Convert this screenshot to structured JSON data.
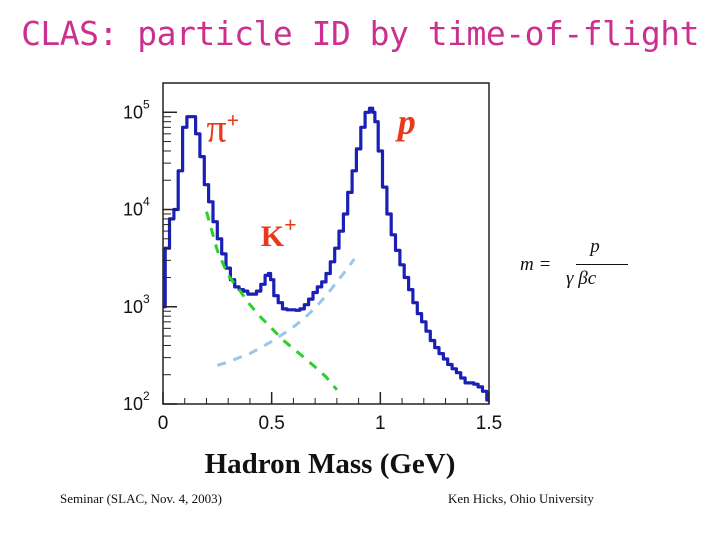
{
  "slide": {
    "title": "CLAS: particle ID by time-of-flight",
    "footer_left": "Seminar (SLAC, Nov. 4, 2003)",
    "footer_right": "Ken Hicks, Ohio University"
  },
  "formula": {
    "lhs": "m =",
    "numerator": "p",
    "denominator": "γ βc"
  },
  "chart_data": {
    "type": "line",
    "title": "",
    "xlabel": "Hadron Mass (GeV)",
    "ylabel": "",
    "xlim": [
      0,
      1.5
    ],
    "ylim": [
      100,
      200000
    ],
    "yscale": "log",
    "xticks": [
      "0",
      "0.5",
      "1",
      "1.5"
    ],
    "xtick_values": [
      0,
      0.5,
      1,
      1.5
    ],
    "yticks": [
      {
        "base": "10",
        "exp": "5",
        "value": 100000
      },
      {
        "base": "10",
        "exp": "4",
        "value": 10000
      },
      {
        "base": "10",
        "exp": "3",
        "value": 1000
      },
      {
        "base": "10",
        "exp": "2",
        "value": 100
      }
    ],
    "colors": {
      "data": "#1a1fb5",
      "pion_fit": "#2bd12b",
      "proton_fit": "#99c6ea",
      "labels": "#e8391a",
      "title": "#cc2f8f"
    },
    "series": [
      {
        "name": "data",
        "style": "solid",
        "x": [
          0.0,
          0.02,
          0.04,
          0.06,
          0.08,
          0.1,
          0.12,
          0.14,
          0.16,
          0.18,
          0.2,
          0.22,
          0.24,
          0.26,
          0.28,
          0.3,
          0.32,
          0.34,
          0.36,
          0.38,
          0.4,
          0.42,
          0.44,
          0.46,
          0.48,
          0.49,
          0.5,
          0.52,
          0.54,
          0.56,
          0.58,
          0.6,
          0.62,
          0.64,
          0.66,
          0.68,
          0.7,
          0.72,
          0.74,
          0.76,
          0.78,
          0.8,
          0.82,
          0.84,
          0.86,
          0.88,
          0.9,
          0.92,
          0.94,
          0.96,
          0.97,
          0.98,
          1.0,
          1.02,
          1.04,
          1.06,
          1.08,
          1.1,
          1.12,
          1.14,
          1.16,
          1.18,
          1.2,
          1.22,
          1.24,
          1.26,
          1.28,
          1.3,
          1.32,
          1.34,
          1.36,
          1.38,
          1.4,
          1.42,
          1.44,
          1.46,
          1.48,
          1.5
        ],
        "y": [
          1000,
          4000,
          8000,
          10000,
          25000,
          70000,
          90000,
          90000,
          60000,
          35000,
          18000,
          12000,
          7500,
          5000,
          3500,
          2500,
          1900,
          1600,
          1500,
          1450,
          1350,
          1350,
          1450,
          1700,
          2100,
          2200,
          1900,
          1300,
          1100,
          950,
          930,
          930,
          920,
          950,
          1050,
          1200,
          1400,
          1600,
          1800,
          2200,
          2900,
          4000,
          6000,
          9000,
          15000,
          25000,
          42000,
          70000,
          100000,
          110000,
          100000,
          80000,
          40000,
          17000,
          9000,
          5500,
          3800,
          2700,
          2000,
          1500,
          1100,
          850,
          700,
          560,
          450,
          380,
          330,
          290,
          255,
          230,
          210,
          185,
          165,
          165,
          160,
          150,
          135,
          110
        ]
      },
      {
        "name": "pion tail fit",
        "style": "dashed",
        "x": [
          0.2,
          0.25,
          0.3,
          0.35,
          0.4,
          0.45,
          0.5,
          0.55,
          0.6,
          0.65,
          0.7,
          0.75,
          0.8
        ],
        "y": [
          9500,
          3800,
          2100,
          1500,
          1050,
          780,
          600,
          460,
          370,
          300,
          240,
          190,
          140
        ]
      },
      {
        "name": "proton tail fit",
        "style": "dashed",
        "x": [
          0.25,
          0.3,
          0.35,
          0.4,
          0.45,
          0.5,
          0.55,
          0.6,
          0.65,
          0.7,
          0.75,
          0.8,
          0.85,
          0.88
        ],
        "y": [
          250,
          270,
          300,
          330,
          380,
          440,
          520,
          620,
          760,
          970,
          1300,
          1800,
          2500,
          3100
        ]
      }
    ],
    "annotations": [
      {
        "text": "π",
        "sup": "+",
        "x": 0.2,
        "y": 50000
      },
      {
        "text": "K",
        "sup": "+",
        "x": 0.45,
        "y": 4200
      },
      {
        "text": "p",
        "x": 1.08,
        "y": 60000
      }
    ]
  }
}
